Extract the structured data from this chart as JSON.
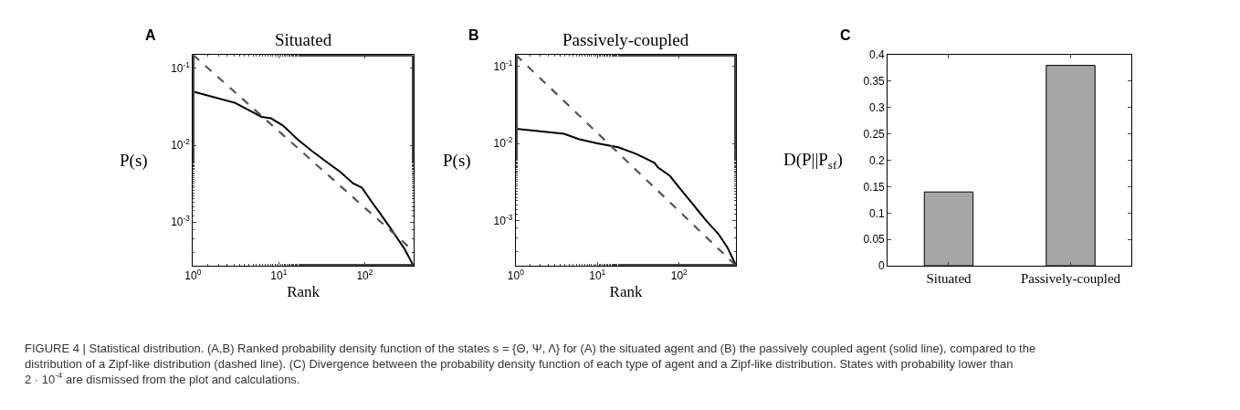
{
  "chart_data": [
    {
      "type": "line",
      "title": "Situated",
      "xlabel": "Rank",
      "ylabel": "P(s)",
      "log": "xy",
      "xlim": [
        1,
        370
      ],
      "xticks": [
        {
          "value": 1,
          "label": "10$^{0}$"
        },
        {
          "value": 10,
          "label": "10$^{1}$"
        },
        {
          "value": 100,
          "label": "10$^{2}$"
        }
      ],
      "ylim": [
        0.00027,
        0.15
      ],
      "yticks": [
        {
          "value": 0.001,
          "label": "10$^{-3}$"
        },
        {
          "value": 0.01,
          "label": "10$^{-2}$"
        },
        {
          "value": 0.1,
          "label": "10$^{-1}$"
        }
      ],
      "annotations": [
        "A"
      ],
      "series": [
        {
          "color": "#000000",
          "line_style": "solid",
          "x": [
            1,
            3.05,
            6.3,
            8.1,
            11.2,
            16.8,
            25,
            38,
            52,
            73,
            93,
            118,
            151,
            193,
            246,
            290,
            370
          ],
          "values": [
            0.05,
            0.0358,
            0.0234,
            0.0224,
            0.018,
            0.0117,
            0.0082,
            0.0058,
            0.0045,
            0.0032,
            0.0028,
            0.0019,
            0.0013,
            0.00088,
            0.00059,
            0.00045,
            0.00027
          ]
        },
        {
          "color": "#555555",
          "line_style": "dashed",
          "x": [
            1,
            370
          ],
          "values": [
            0.15,
            0.00042
          ]
        }
      ]
    },
    {
      "type": "line",
      "title": "Passively-coupled",
      "xlabel": "Rank",
      "ylabel": "P(s)",
      "log": "xy",
      "xlim": [
        1,
        500
      ],
      "xticks": [
        {
          "value": 1,
          "label": "10$^{0}$"
        },
        {
          "value": 10,
          "label": "10$^{1}$"
        },
        {
          "value": 100,
          "label": "10$^{2}$"
        }
      ],
      "ylim": [
        0.00026,
        0.14
      ],
      "yticks": [
        {
          "value": 0.001,
          "label": "10$^{-3}$"
        },
        {
          "value": 0.01,
          "label": "10$^{-2}$"
        },
        {
          "value": 0.1,
          "label": "10$^{-1}$"
        }
      ],
      "annotations": [
        "B"
      ],
      "series": [
        {
          "color": "#000000",
          "line_style": "solid",
          "x": [
            1,
            3.9,
            6,
            10,
            18,
            30,
            50,
            55,
            77,
            109,
            153,
            215,
            303,
            390,
            500
          ],
          "values": [
            0.0155,
            0.0133,
            0.0113,
            0.01,
            0.0089,
            0.0073,
            0.0056,
            0.0049,
            0.0038,
            0.0024,
            0.00155,
            0.001,
            0.00067,
            0.00045,
            0.00026
          ]
        },
        {
          "color": "#555555",
          "line_style": "dashed",
          "x": [
            1,
            500
          ],
          "values": [
            0.14,
            0.00026
          ]
        }
      ]
    },
    {
      "type": "bar",
      "ylabel": "D(P||P$_{sf}$)",
      "categories": [
        "Situated",
        "Passively-coupled"
      ],
      "values": [
        0.14,
        0.38
      ],
      "color": "#a6a6a6",
      "ylim": [
        0,
        0.4
      ],
      "yticks": [
        0,
        {
          "value": 0.05,
          "label": "0.05"
        },
        {
          "value": 0.1,
          "label": "0.1"
        },
        {
          "value": 0.15,
          "label": "0.15"
        },
        {
          "value": 0.2,
          "label": "0.2"
        },
        {
          "value": 0.25,
          "label": "0.25"
        },
        {
          "value": 0.3,
          "label": "0.3"
        },
        {
          "value": 0.35,
          "label": "0.35"
        },
        {
          "value": 0.4,
          "label": "0.4"
        }
      ],
      "annotations": [
        "C",
        "FIGURE 4 | Statistical distribution. (A,B) Ranked probability density function of the states s = {Θ, Ψ, Λ} for (A) the situated agent and (B) the passively coupled agent (solid line), compared to the distribution of a Zipf-like distribution (dashed line). (C) Divergence between the probability density function of each type of agent and a Zipf-like distribution. States with probability lower than 2 · 10$^{-4}$ are dismissed from the plot and calculations."
      ]
    }
  ]
}
